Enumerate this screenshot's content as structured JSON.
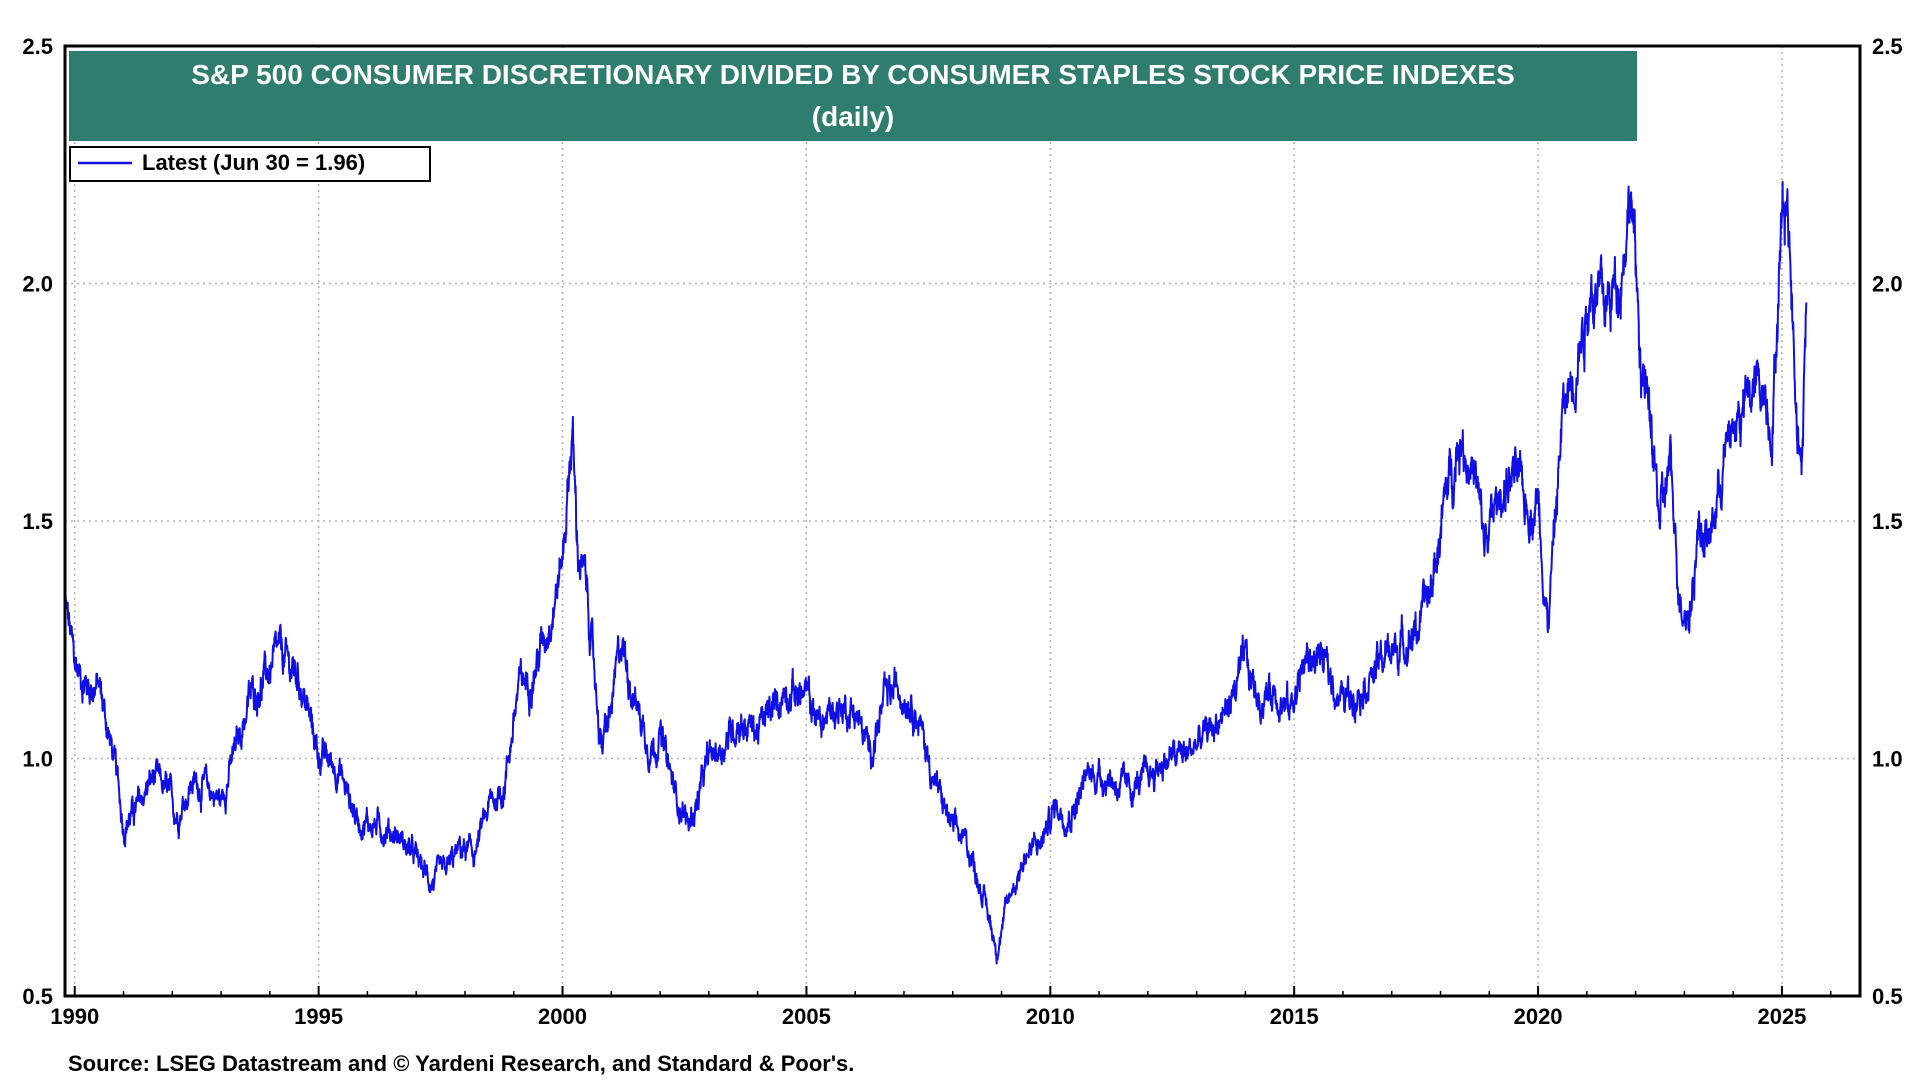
{
  "chart_data": {
    "type": "line",
    "title": "S&P 500 CONSUMER DISCRETIONARY DIVIDED BY CONSUMER STAPLES STOCK PRICE INDEXES",
    "subtitle": "(daily)",
    "xlabel": "",
    "ylabel": "",
    "xlim": [
      1989.8,
      2026.6
    ],
    "ylim": [
      0.5,
      2.5
    ],
    "x_ticks": [
      "1990",
      "1995",
      "2000",
      "2005",
      "2010",
      "2015",
      "2020",
      "2025"
    ],
    "y_ticks_left": [
      "2.5",
      "2.0",
      "1.5",
      "1.0",
      "0.5"
    ],
    "y_ticks_right": [
      "2.5",
      "2.0",
      "1.5",
      "1.0",
      "0.5"
    ],
    "grid": true,
    "legend_position": "top-left",
    "series": [
      {
        "name": "Latest (Jun 30 = 1.96)",
        "color": "#1010e6",
        "x": [
          1989.8,
          1990.0,
          1990.2,
          1990.5,
          1990.8,
          1991.0,
          1991.3,
          1991.6,
          1991.9,
          1992.1,
          1992.4,
          1992.7,
          1993.0,
          1993.3,
          1993.6,
          1993.9,
          1994.2,
          1994.6,
          1995.0,
          1995.4,
          1995.8,
          1996.2,
          1996.6,
          1997.0,
          1997.3,
          1997.6,
          1997.9,
          1998.2,
          1998.5,
          1998.8,
          1999.1,
          1999.4,
          1999.7,
          2000.0,
          2000.2,
          2000.3,
          2000.5,
          2000.8,
          2001.0,
          2001.2,
          2001.5,
          2001.8,
          2002.0,
          2002.3,
          2002.6,
          2002.8,
          2003.0,
          2003.3,
          2003.6,
          2004.0,
          2004.3,
          2004.6,
          2005.0,
          2005.3,
          2005.6,
          2006.0,
          2006.3,
          2006.6,
          2006.9,
          2007.2,
          2007.6,
          2008.0,
          2008.3,
          2008.6,
          2008.9,
          2009.2,
          2009.5,
          2009.8,
          2010.1,
          2010.4,
          2010.8,
          2011.2,
          2011.6,
          2012.0,
          2012.4,
          2012.8,
          2013.2,
          2013.6,
          2014.0,
          2014.3,
          2014.6,
          2014.9,
          2015.2,
          2015.5,
          2015.8,
          2016.0,
          2016.3,
          2016.6,
          2016.9,
          2017.2,
          2017.5,
          2017.8,
          2018.1,
          2018.4,
          2018.7,
          2018.9,
          2019.2,
          2019.5,
          2019.8,
          2020.0,
          2020.2,
          2020.5,
          2020.8,
          2021.1,
          2021.4,
          2021.7,
          2021.9,
          2022.1,
          2022.3,
          2022.5,
          2022.7,
          2022.9,
          2023.1,
          2023.3,
          2023.5,
          2023.8,
          2024.0,
          2024.3,
          2024.6,
          2024.8,
          2025.0,
          2025.1,
          2025.3,
          2025.4,
          2025.5
        ],
        "values": [
          1.33,
          1.2,
          1.16,
          1.15,
          1.0,
          0.86,
          0.9,
          0.96,
          0.93,
          0.88,
          0.95,
          0.94,
          0.91,
          1.02,
          1.13,
          1.17,
          1.22,
          1.17,
          1.01,
          0.98,
          0.87,
          0.86,
          0.84,
          0.79,
          0.74,
          0.76,
          0.81,
          0.8,
          0.9,
          0.94,
          1.15,
          1.18,
          1.28,
          1.42,
          1.7,
          1.45,
          1.35,
          1.02,
          1.1,
          1.25,
          1.12,
          1.02,
          1.05,
          0.93,
          0.86,
          0.92,
          1.0,
          1.03,
          1.08,
          1.06,
          1.1,
          1.15,
          1.13,
          1.07,
          1.11,
          1.1,
          1.01,
          1.12,
          1.15,
          1.12,
          0.96,
          0.85,
          0.82,
          0.72,
          0.6,
          0.72,
          0.8,
          0.82,
          0.9,
          0.88,
          0.97,
          0.96,
          0.93,
          0.96,
          1.0,
          1.01,
          1.05,
          1.1,
          1.2,
          1.12,
          1.15,
          1.1,
          1.2,
          1.22,
          1.16,
          1.12,
          1.15,
          1.18,
          1.22,
          1.24,
          1.27,
          1.35,
          1.55,
          1.68,
          1.6,
          1.45,
          1.55,
          1.6,
          1.52,
          1.55,
          1.28,
          1.72,
          1.85,
          2.0,
          1.95,
          2.03,
          2.2,
          1.85,
          1.7,
          1.5,
          1.62,
          1.35,
          1.3,
          1.5,
          1.45,
          1.62,
          1.7,
          1.75,
          1.8,
          1.7,
          2.15,
          2.2,
          1.75,
          1.62,
          1.96
        ]
      }
    ]
  },
  "legend": {
    "label": "Latest (Jun 30 = 1.96)"
  },
  "source": "Source: LSEG Datastream and © Yardeni Research, and Standard & Poor's.",
  "colors": {
    "line": "#1010e6",
    "title_bg": "#2e7d6f",
    "grid": "#b0b0b0",
    "axis": "#000000"
  }
}
